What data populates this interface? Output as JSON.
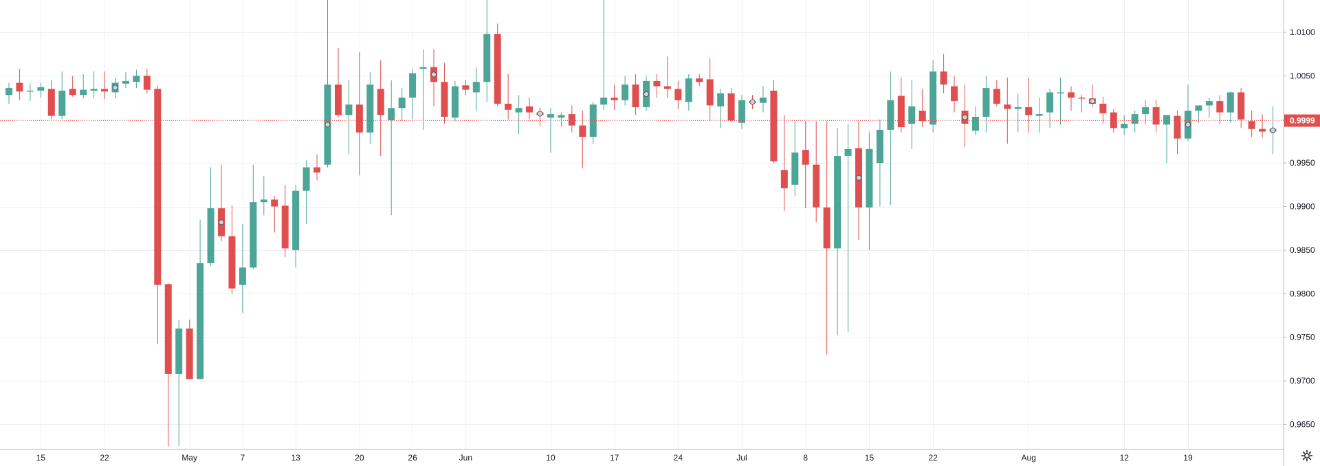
{
  "colors": {
    "up": "#4ca596",
    "down": "#e04f4f",
    "grid": "#eceff2",
    "axis_line": "#b2b5be",
    "price_line": "#e04f4f",
    "marker_fill": "#d1d4dc",
    "marker_stroke": "#555555"
  },
  "current_price_label": "0.9999",
  "settings_icon": "gear-icon",
  "chart_data": {
    "type": "candlestick",
    "x_labels": [
      {
        "label": "15",
        "index": 3
      },
      {
        "label": "22",
        "index": 9
      },
      {
        "label": "May",
        "index": 17
      },
      {
        "label": "7",
        "index": 22
      },
      {
        "label": "13",
        "index": 27
      },
      {
        "label": "20",
        "index": 33
      },
      {
        "label": "26",
        "index": 38
      },
      {
        "label": "Jun",
        "index": 43
      },
      {
        "label": "10",
        "index": 51
      },
      {
        "label": "17",
        "index": 57
      },
      {
        "label": "24",
        "index": 63
      },
      {
        "label": "Jul",
        "index": 69
      },
      {
        "label": "8",
        "index": 75
      },
      {
        "label": "15",
        "index": 81
      },
      {
        "label": "22",
        "index": 87
      },
      {
        "label": "Aug",
        "index": 96
      },
      {
        "label": "12",
        "index": 105
      },
      {
        "label": "19",
        "index": 111
      }
    ],
    "y_ticks": [
      "1.0100",
      "1.0050",
      "1.0000",
      "0.9950",
      "0.9900",
      "0.9850",
      "0.9800",
      "0.9750",
      "0.9700",
      "0.9650"
    ],
    "y_min": 0.9622,
    "y_max": 1.0137,
    "current_price": 0.9999,
    "candles": [
      {
        "o": 1.0028,
        "h": 1.0042,
        "l": 1.0018,
        "c": 1.0036
      },
      {
        "o": 1.0042,
        "h": 1.0058,
        "l": 1.0022,
        "c": 1.0032
      },
      {
        "o": 1.0032,
        "h": 1.0041,
        "l": 1.0021,
        "c": 1.0033
      },
      {
        "o": 1.0033,
        "h": 1.0042,
        "l": 1.0025,
        "c": 1.0037
      },
      {
        "o": 1.0035,
        "h": 1.0045,
        "l": 1.0,
        "c": 1.0004
      },
      {
        "o": 1.0004,
        "h": 1.0055,
        "l": 1.0,
        "c": 1.0033
      },
      {
        "o": 1.0035,
        "h": 1.005,
        "l": 1.0026,
        "c": 1.0028
      },
      {
        "o": 1.0028,
        "h": 1.0052,
        "l": 1.0024,
        "c": 1.0034
      },
      {
        "o": 1.0033,
        "h": 1.0055,
        "l": 1.0024,
        "c": 1.0035
      },
      {
        "o": 1.0035,
        "h": 1.0055,
        "l": 1.0023,
        "c": 1.0032
      },
      {
        "o": 1.0031,
        "h": 1.0048,
        "l": 1.0024,
        "c": 1.0042,
        "m": true
      },
      {
        "o": 1.0041,
        "h": 1.0054,
        "l": 1.0036,
        "c": 1.0044
      },
      {
        "o": 1.0043,
        "h": 1.0057,
        "l": 1.0036,
        "c": 1.005
      },
      {
        "o": 1.005,
        "h": 1.0058,
        "l": 1.003,
        "c": 1.0034
      },
      {
        "o": 1.0035,
        "h": 1.0038,
        "l": 0.9742,
        "c": 0.981
      },
      {
        "o": 0.9811,
        "h": 0.9812,
        "l": 0.9625,
        "c": 0.9708
      },
      {
        "o": 0.9708,
        "h": 0.977,
        "l": 0.9625,
        "c": 0.976
      },
      {
        "o": 0.976,
        "h": 0.977,
        "l": 0.9702,
        "c": 0.9702
      },
      {
        "o": 0.9702,
        "h": 0.9885,
        "l": 0.9702,
        "c": 0.9835
      },
      {
        "o": 0.9835,
        "h": 0.9945,
        "l": 0.9832,
        "c": 0.9898
      },
      {
        "o": 0.9898,
        "h": 0.9948,
        "l": 0.986,
        "c": 0.9866,
        "m": true
      },
      {
        "o": 0.9866,
        "h": 0.9902,
        "l": 0.98,
        "c": 0.9806
      },
      {
        "o": 0.981,
        "h": 0.988,
        "l": 0.9778,
        "c": 0.983
      },
      {
        "o": 0.983,
        "h": 0.9948,
        "l": 0.9828,
        "c": 0.9905
      },
      {
        "o": 0.9905,
        "h": 0.9935,
        "l": 0.989,
        "c": 0.9908
      },
      {
        "o": 0.9908,
        "h": 0.9912,
        "l": 0.987,
        "c": 0.99
      },
      {
        "o": 0.9901,
        "h": 0.9925,
        "l": 0.9842,
        "c": 0.9852
      },
      {
        "o": 0.985,
        "h": 0.9925,
        "l": 0.983,
        "c": 0.9918
      },
      {
        "o": 0.9918,
        "h": 0.9953,
        "l": 0.988,
        "c": 0.9945
      },
      {
        "o": 0.9945,
        "h": 0.996,
        "l": 0.993,
        "c": 0.9939
      },
      {
        "o": 0.9948,
        "h": 1.0137,
        "l": 0.9945,
        "c": 1.004,
        "m": true
      },
      {
        "o": 1.004,
        "h": 1.0082,
        "l": 1.0002,
        "c": 1.0005
      },
      {
        "o": 1.0005,
        "h": 1.0045,
        "l": 0.996,
        "c": 1.0017
      },
      {
        "o": 1.0017,
        "h": 1.0077,
        "l": 0.9936,
        "c": 0.9985
      },
      {
        "o": 0.9985,
        "h": 1.0054,
        "l": 0.9972,
        "c": 1.004
      },
      {
        "o": 1.0035,
        "h": 1.0068,
        "l": 0.9958,
        "c": 1.0005
      },
      {
        "o": 0.9999,
        "h": 1.0045,
        "l": 0.989,
        "c": 1.0013
      },
      {
        "o": 1.0013,
        "h": 1.0036,
        "l": 0.9999,
        "c": 1.0025
      },
      {
        "o": 1.0025,
        "h": 1.0058,
        "l": 1.0,
        "c": 1.0053
      },
      {
        "o": 1.0058,
        "h": 1.008,
        "l": 0.9988,
        "c": 1.006
      },
      {
        "o": 1.006,
        "h": 1.0081,
        "l": 1.0015,
        "c": 1.0043,
        "m": true
      },
      {
        "o": 1.0043,
        "h": 1.0065,
        "l": 0.9995,
        "c": 1.0003
      },
      {
        "o": 1.0002,
        "h": 1.0044,
        "l": 0.9998,
        "c": 1.0038
      },
      {
        "o": 1.0039,
        "h": 1.0045,
        "l": 1.0028,
        "c": 1.0034
      },
      {
        "o": 1.0031,
        "h": 1.006,
        "l": 1.001,
        "c": 1.0043
      },
      {
        "o": 1.0043,
        "h": 1.0137,
        "l": 1.002,
        "c": 1.0098
      },
      {
        "o": 1.0098,
        "h": 1.011,
        "l": 1.0015,
        "c": 1.0018
      },
      {
        "o": 1.0018,
        "h": 1.0052,
        "l": 1.0,
        "c": 1.0011
      },
      {
        "o": 1.0008,
        "h": 1.0028,
        "l": 0.9983,
        "c": 1.0013
      },
      {
        "o": 1.0015,
        "h": 1.0025,
        "l": 1.0,
        "c": 1.0008
      },
      {
        "o": 1.0008,
        "h": 1.0014,
        "l": 0.9992,
        "c": 1.0005,
        "m": true
      },
      {
        "o": 1.0002,
        "h": 1.0013,
        "l": 0.9962,
        "c": 1.0006
      },
      {
        "o": 1.0002,
        "h": 1.0008,
        "l": 0.9992,
        "c": 1.0005
      },
      {
        "o": 1.0006,
        "h": 1.0016,
        "l": 0.9985,
        "c": 0.9993
      },
      {
        "o": 0.9993,
        "h": 1.001,
        "l": 0.9944,
        "c": 0.998
      },
      {
        "o": 0.998,
        "h": 1.002,
        "l": 0.9972,
        "c": 1.0017
      },
      {
        "o": 1.0017,
        "h": 1.0137,
        "l": 1.0011,
        "c": 1.0025
      },
      {
        "o": 1.0025,
        "h": 1.004,
        "l": 1.0011,
        "c": 1.0022
      },
      {
        "o": 1.0022,
        "h": 1.005,
        "l": 1.0016,
        "c": 1.004
      },
      {
        "o": 1.004,
        "h": 1.0052,
        "l": 1.0005,
        "c": 1.0014
      },
      {
        "o": 1.0014,
        "h": 1.005,
        "l": 1.001,
        "c": 1.0044,
        "m": true
      },
      {
        "o": 1.0044,
        "h": 1.0052,
        "l": 1.0025,
        "c": 1.0038
      },
      {
        "o": 1.0038,
        "h": 1.0072,
        "l": 1.0025,
        "c": 1.0035
      },
      {
        "o": 1.0035,
        "h": 1.0044,
        "l": 1.0012,
        "c": 1.0022
      },
      {
        "o": 1.002,
        "h": 1.0052,
        "l": 1.001,
        "c": 1.0047
      },
      {
        "o": 1.0047,
        "h": 1.0052,
        "l": 1.0038,
        "c": 1.0043
      },
      {
        "o": 1.0046,
        "h": 1.007,
        "l": 0.9998,
        "c": 1.0016
      },
      {
        "o": 1.0015,
        "h": 1.0035,
        "l": 0.999,
        "c": 1.003
      },
      {
        "o": 1.003,
        "h": 1.0036,
        "l": 0.9997,
        "c": 0.9999
      },
      {
        "o": 0.9996,
        "h": 1.0028,
        "l": 0.9989,
        "c": 1.0022
      },
      {
        "o": 1.0021,
        "h": 1.0028,
        "l": 1.0012,
        "c": 1.0019,
        "m": true
      },
      {
        "o": 1.0019,
        "h": 1.0038,
        "l": 1.0008,
        "c": 1.0025
      },
      {
        "o": 1.0033,
        "h": 1.0045,
        "l": 0.995,
        "c": 0.9952
      },
      {
        "o": 0.9942,
        "h": 1.0005,
        "l": 0.9895,
        "c": 0.9921
      },
      {
        "o": 0.9925,
        "h": 0.9998,
        "l": 0.9912,
        "c": 0.9962
      },
      {
        "o": 0.9965,
        "h": 0.9998,
        "l": 0.9898,
        "c": 0.9948
      },
      {
        "o": 0.9948,
        "h": 0.9998,
        "l": 0.9882,
        "c": 0.9899
      },
      {
        "o": 0.9899,
        "h": 0.9998,
        "l": 0.973,
        "c": 0.9852
      },
      {
        "o": 0.9852,
        "h": 0.999,
        "l": 0.9752,
        "c": 0.9958
      },
      {
        "o": 0.9958,
        "h": 0.9995,
        "l": 0.9756,
        "c": 0.9966
      },
      {
        "o": 0.9967,
        "h": 0.9998,
        "l": 0.9862,
        "c": 0.9899,
        "m": true
      },
      {
        "o": 0.9899,
        "h": 0.9985,
        "l": 0.985,
        "c": 0.9966
      },
      {
        "o": 0.995,
        "h": 1.0,
        "l": 0.99,
        "c": 0.9988
      },
      {
        "o": 0.9988,
        "h": 1.0055,
        "l": 0.9902,
        "c": 1.0022
      },
      {
        "o": 1.0027,
        "h": 1.0048,
        "l": 0.9985,
        "c": 0.9991
      },
      {
        "o": 0.9995,
        "h": 1.0045,
        "l": 0.9966,
        "c": 1.0015
      },
      {
        "o": 1.001,
        "h": 1.0035,
        "l": 0.9991,
        "c": 0.9998
      },
      {
        "o": 0.9994,
        "h": 1.0068,
        "l": 0.9985,
        "c": 1.0055
      },
      {
        "o": 1.0055,
        "h": 1.0075,
        "l": 1.003,
        "c": 1.004
      },
      {
        "o": 1.0038,
        "h": 1.005,
        "l": 1.0008,
        "c": 1.0021
      },
      {
        "o": 1.001,
        "h": 1.004,
        "l": 0.9968,
        "c": 0.9995,
        "m": true
      },
      {
        "o": 0.9987,
        "h": 1.0015,
        "l": 0.9982,
        "c": 1.0003
      },
      {
        "o": 1.0003,
        "h": 1.005,
        "l": 0.9985,
        "c": 1.0036
      },
      {
        "o": 1.0035,
        "h": 1.0045,
        "l": 1.0015,
        "c": 1.0018
      },
      {
        "o": 1.0017,
        "h": 1.0048,
        "l": 0.9972,
        "c": 1.0012
      },
      {
        "o": 1.0012,
        "h": 1.003,
        "l": 0.9985,
        "c": 1.0014
      },
      {
        "o": 1.0014,
        "h": 1.0048,
        "l": 0.9985,
        "c": 1.0005
      },
      {
        "o": 1.0004,
        "h": 1.0025,
        "l": 0.9985,
        "c": 1.0006
      },
      {
        "o": 1.0008,
        "h": 1.0035,
        "l": 0.999,
        "c": 1.0031
      },
      {
        "o": 1.0031,
        "h": 1.0048,
        "l": 0.9994,
        "c": 1.0031
      },
      {
        "o": 1.0031,
        "h": 1.0038,
        "l": 1.001,
        "c": 1.0025
      },
      {
        "o": 1.0025,
        "h": 1.0028,
        "l": 1.0008,
        "c": 1.0024
      },
      {
        "o": 1.0024,
        "h": 1.004,
        "l": 1.0014,
        "c": 1.0018,
        "m": true
      },
      {
        "o": 1.0018,
        "h": 1.0026,
        "l": 0.9995,
        "c": 1.0007
      },
      {
        "o": 1.0008,
        "h": 1.0012,
        "l": 0.9985,
        "c": 0.999
      },
      {
        "o": 0.999,
        "h": 1.0005,
        "l": 0.9982,
        "c": 0.9995
      },
      {
        "o": 0.9995,
        "h": 1.001,
        "l": 0.9985,
        "c": 1.0006
      },
      {
        "o": 1.0006,
        "h": 1.0022,
        "l": 0.9994,
        "c": 1.0014
      },
      {
        "o": 1.0014,
        "h": 1.0022,
        "l": 0.9985,
        "c": 0.9994
      },
      {
        "o": 0.9994,
        "h": 1.0005,
        "l": 0.995,
        "c": 1.0005
      },
      {
        "o": 1.0004,
        "h": 1.001,
        "l": 0.996,
        "c": 0.9978
      },
      {
        "o": 0.9978,
        "h": 1.004,
        "l": 0.9975,
        "c": 1.001,
        "m": true
      },
      {
        "o": 1.001,
        "h": 1.0015,
        "l": 0.9996,
        "c": 1.0016
      },
      {
        "o": 1.0016,
        "h": 1.0025,
        "l": 1.0002,
        "c": 1.0021
      },
      {
        "o": 1.0021,
        "h": 1.0028,
        "l": 0.9994,
        "c": 1.0008
      },
      {
        "o": 1.0008,
        "h": 1.0032,
        "l": 0.9996,
        "c": 1.0031
      },
      {
        "o": 1.0031,
        "h": 1.0036,
        "l": 0.999,
        "c": 1.0
      },
      {
        "o": 0.9998,
        "h": 1.001,
        "l": 0.998,
        "c": 0.9989
      },
      {
        "o": 0.9989,
        "h": 1.0006,
        "l": 0.9979,
        "c": 0.9986
      },
      {
        "o": 0.9986,
        "h": 1.0015,
        "l": 0.996,
        "c": 0.9989,
        "m": true
      }
    ]
  }
}
